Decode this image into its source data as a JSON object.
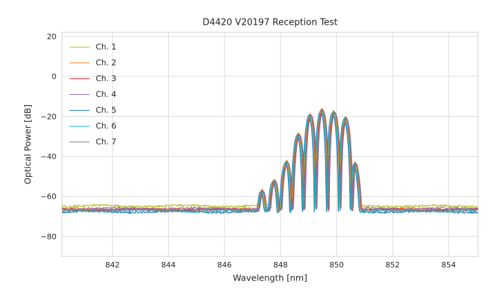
{
  "chart_data": {
    "type": "line",
    "title": "D4420 V20197 Reception Test",
    "xlabel": "Wavelength [nm]",
    "ylabel": "Optical Power [dB]",
    "xlim": [
      840.2,
      855.05
    ],
    "ylim": [
      -90,
      22
    ],
    "x_ticks": [
      842,
      844,
      846,
      848,
      850,
      852,
      854
    ],
    "y_ticks": [
      20,
      0,
      -20,
      -40,
      -60,
      -80
    ],
    "grid": true,
    "grid_color": "#dcdcdc",
    "border_color": "#d0d0d0",
    "text_color": "#262626",
    "legend_position": "upper left",
    "line_width": 1.1,
    "sample_step_nm": 0.02,
    "fringe": {
      "period_nm": 0.43,
      "peak_ref_nm": 849.45,
      "depth_db_per_decade": 40,
      "min_visibility": 0.004
    },
    "envelope_peaks": [
      [
        846.85,
        -70
      ],
      [
        847.3,
        -57.5
      ],
      [
        847.73,
        -52.5
      ],
      [
        848.16,
        -43.5
      ],
      [
        848.59,
        -29.5
      ],
      [
        849.02,
        -19.5
      ],
      [
        849.45,
        -17
      ],
      [
        849.88,
        -18
      ],
      [
        850.31,
        -21
      ],
      [
        850.55,
        -28
      ],
      [
        850.72,
        -48
      ],
      [
        850.9,
        -70
      ]
    ],
    "series": [
      {
        "name": "Ch. 1",
        "color": "#bcbd22",
        "noise_floor_db": -64.8,
        "x_shift_nm": 0.0,
        "gain_db": 0.3
      },
      {
        "name": "Ch. 2",
        "color": "#ff7f0e",
        "noise_floor_db": -66.3,
        "x_shift_nm": 0.02,
        "gain_db": 0.8
      },
      {
        "name": "Ch. 3",
        "color": "#d62728",
        "noise_floor_db": -66.6,
        "x_shift_nm": 0.04,
        "gain_db": 0.2
      },
      {
        "name": "Ch. 4",
        "color": "#9467bd",
        "noise_floor_db": -66.1,
        "x_shift_nm": 0.07,
        "gain_db": -0.2
      },
      {
        "name": "Ch. 5",
        "color": "#1f77b4",
        "noise_floor_db": -67.7,
        "x_shift_nm": -0.03,
        "gain_db": -0.4
      },
      {
        "name": "Ch. 6",
        "color": "#17becf",
        "noise_floor_db": -67.2,
        "x_shift_nm": -0.01,
        "gain_db": 0.0
      },
      {
        "name": "Ch. 7",
        "color": "#7f7f7f",
        "noise_floor_db": -66.9,
        "x_shift_nm": 0.05,
        "gain_db": -0.3
      }
    ]
  }
}
